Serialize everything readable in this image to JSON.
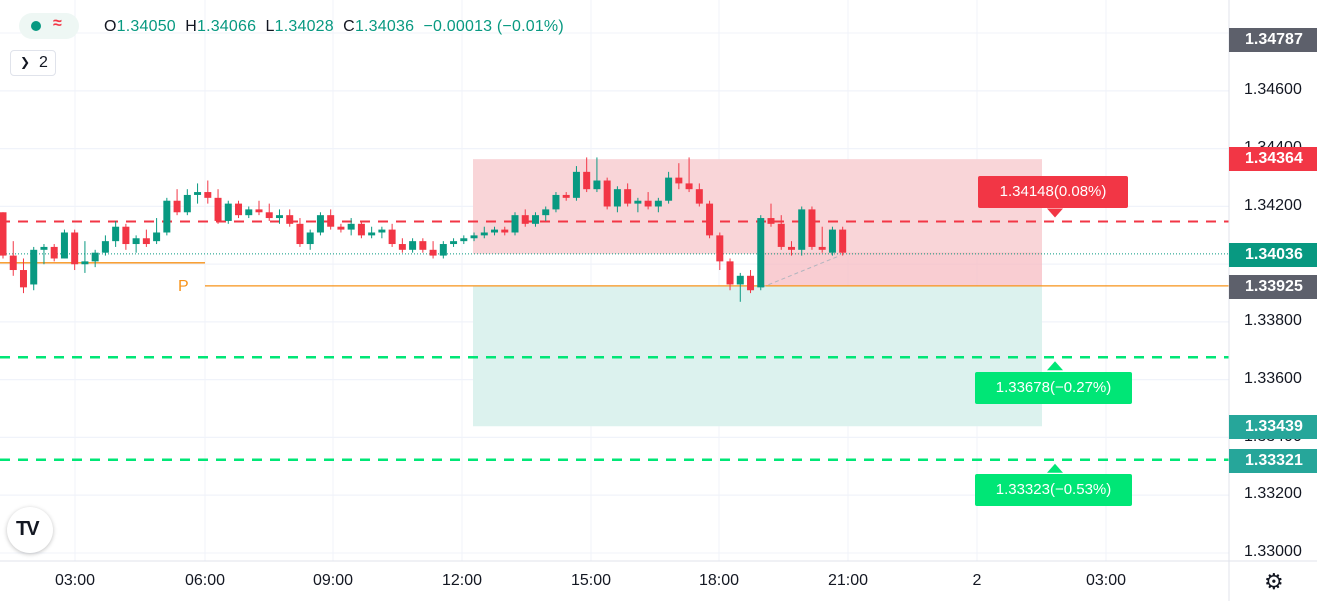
{
  "legend": {
    "dot_icon": "circle-icon",
    "wave_icon": "approx-icon",
    "collapse_icon": "chevron-down-icon",
    "collapse_count": "2"
  },
  "ohlc": {
    "o_key": "O",
    "o_val": "1.34050",
    "h_key": "H",
    "h_val": "1.34066",
    "l_key": "L",
    "l_val": "1.34028",
    "c_key": "C",
    "c_val": "1.34036",
    "change": "−0.00013 (−0.01%)"
  },
  "price_axis": {
    "labels": [
      "1.34600",
      "1.34400",
      "1.34200",
      "1.34000",
      "1.33800",
      "1.33600",
      "1.33400",
      "1.33200",
      "1.33000"
    ]
  },
  "price_tags": {
    "top": "1.34787",
    "stop": "1.34364",
    "last": "1.34036",
    "pivot": "1.33925",
    "target1": "1.33439",
    "target2": "1.33321"
  },
  "time_axis": {
    "labels": [
      "03:00",
      "06:00",
      "09:00",
      "12:00",
      "15:00",
      "18:00",
      "21:00",
      "2",
      "03:00"
    ]
  },
  "position": {
    "stop_label": "1.34148(0.08%)",
    "tp1_label": "1.33678(−0.27%)",
    "tp2_label": "1.33323(−0.53%)"
  },
  "pivot_label": "P",
  "colors": {
    "up": "#089981",
    "down": "#f23645",
    "stop_zone": "#f9d5d8",
    "target_zone": "#dcf2ee",
    "tp_line": "#00e676",
    "stop_line": "#f23645",
    "pivot_line": "#f7931a",
    "axis_dark": "#5d606b",
    "target_tag": "#26a69a"
  },
  "logo": "tradingview-logo",
  "settings_icon": "gear-icon",
  "chart_data": {
    "type": "candlestick",
    "ylim": [
      1.33,
      1.3479
    ],
    "x_ticks": [
      "03:00",
      "06:00",
      "09:00",
      "12:00",
      "15:00",
      "18:00",
      "21:00",
      "2",
      "03:00"
    ],
    "candles": [
      [
        1.3418,
        1.3418,
        1.3402,
        1.3403
      ],
      [
        1.3403,
        1.3408,
        1.3396,
        1.3398
      ],
      [
        1.3398,
        1.3402,
        1.339,
        1.3392
      ],
      [
        1.3393,
        1.3406,
        1.3391,
        1.3405
      ],
      [
        1.3405,
        1.3407,
        1.34,
        1.3406
      ],
      [
        1.3406,
        1.3407,
        1.3401,
        1.3402
      ],
      [
        1.3402,
        1.3412,
        1.3402,
        1.3411
      ],
      [
        1.3411,
        1.3412,
        1.3398,
        1.34
      ],
      [
        1.34,
        1.3408,
        1.3397,
        1.3401
      ],
      [
        1.3401,
        1.3405,
        1.3399,
        1.3404
      ],
      [
        1.3404,
        1.341,
        1.3403,
        1.3408
      ],
      [
        1.3408,
        1.3415,
        1.3406,
        1.3413
      ],
      [
        1.3413,
        1.3414,
        1.3405,
        1.3407
      ],
      [
        1.3407,
        1.341,
        1.3404,
        1.3409
      ],
      [
        1.3409,
        1.3412,
        1.3406,
        1.3407
      ],
      [
        1.3408,
        1.3416,
        1.3407,
        1.3411
      ],
      [
        1.3411,
        1.3423,
        1.341,
        1.3422
      ],
      [
        1.3422,
        1.3426,
        1.3417,
        1.3418
      ],
      [
        1.3418,
        1.3426,
        1.3417,
        1.3424
      ],
      [
        1.3424,
        1.3428,
        1.3421,
        1.3425
      ],
      [
        1.3425,
        1.3429,
        1.3421,
        1.3423
      ],
      [
        1.3423,
        1.3426,
        1.3414,
        1.3415
      ],
      [
        1.3415,
        1.3422,
        1.3414,
        1.3421
      ],
      [
        1.3421,
        1.3422,
        1.3416,
        1.3417
      ],
      [
        1.3417,
        1.342,
        1.3416,
        1.3419
      ],
      [
        1.3419,
        1.3422,
        1.3417,
        1.3418
      ],
      [
        1.3418,
        1.3421,
        1.3415,
        1.3416
      ],
      [
        1.3416,
        1.3419,
        1.3414,
        1.3417
      ],
      [
        1.3417,
        1.3419,
        1.3413,
        1.3414
      ],
      [
        1.3414,
        1.3416,
        1.3406,
        1.3407
      ],
      [
        1.3407,
        1.3412,
        1.3405,
        1.3411
      ],
      [
        1.3411,
        1.3418,
        1.341,
        1.3417
      ],
      [
        1.3417,
        1.3419,
        1.3412,
        1.3413
      ],
      [
        1.3413,
        1.3414,
        1.3411,
        1.3412
      ],
      [
        1.3412,
        1.3416,
        1.341,
        1.3414
      ],
      [
        1.3414,
        1.3415,
        1.3409,
        1.341
      ],
      [
        1.341,
        1.3413,
        1.3409,
        1.3411
      ],
      [
        1.3411,
        1.3413,
        1.3409,
        1.3412
      ],
      [
        1.3412,
        1.3414,
        1.3406,
        1.3407
      ],
      [
        1.3407,
        1.3409,
        1.3404,
        1.3405
      ],
      [
        1.3405,
        1.3409,
        1.3404,
        1.3408
      ],
      [
        1.3408,
        1.3409,
        1.3404,
        1.3405
      ],
      [
        1.3405,
        1.3408,
        1.3402,
        1.3403
      ],
      [
        1.3403,
        1.3408,
        1.3402,
        1.3407
      ],
      [
        1.3407,
        1.3409,
        1.3406,
        1.3408
      ],
      [
        1.3408,
        1.341,
        1.3407,
        1.3409
      ],
      [
        1.3409,
        1.3411,
        1.3408,
        1.341
      ],
      [
        1.341,
        1.3413,
        1.3409,
        1.3411
      ],
      [
        1.3411,
        1.3413,
        1.341,
        1.3412
      ],
      [
        1.3412,
        1.3413,
        1.341,
        1.3411
      ],
      [
        1.3411,
        1.3418,
        1.341,
        1.3417
      ],
      [
        1.3417,
        1.3419,
        1.3413,
        1.3414
      ],
      [
        1.3414,
        1.3418,
        1.3413,
        1.3417
      ],
      [
        1.3417,
        1.342,
        1.3415,
        1.3419
      ],
      [
        1.3419,
        1.3425,
        1.3418,
        1.3424
      ],
      [
        1.3424,
        1.3425,
        1.3422,
        1.3423
      ],
      [
        1.3423,
        1.3434,
        1.3422,
        1.3432
      ],
      [
        1.3432,
        1.3437,
        1.3425,
        1.3426
      ],
      [
        1.3426,
        1.3437,
        1.3425,
        1.3429
      ],
      [
        1.3429,
        1.343,
        1.3419,
        1.342
      ],
      [
        1.342,
        1.3427,
        1.3418,
        1.3426
      ],
      [
        1.3426,
        1.3428,
        1.342,
        1.3421
      ],
      [
        1.3421,
        1.3423,
        1.3418,
        1.3422
      ],
      [
        1.3422,
        1.3425,
        1.3419,
        1.342
      ],
      [
        1.342,
        1.3423,
        1.3418,
        1.3422
      ],
      [
        1.3422,
        1.3432,
        1.3421,
        1.343
      ],
      [
        1.343,
        1.3435,
        1.3426,
        1.3428
      ],
      [
        1.3428,
        1.3437,
        1.3425,
        1.3426
      ],
      [
        1.3426,
        1.3428,
        1.342,
        1.3421
      ],
      [
        1.3421,
        1.3422,
        1.3409,
        1.341
      ],
      [
        1.341,
        1.3411,
        1.3398,
        1.3401
      ],
      [
        1.3401,
        1.3402,
        1.3391,
        1.3393
      ],
      [
        1.3393,
        1.3397,
        1.3387,
        1.3396
      ],
      [
        1.3396,
        1.3398,
        1.339,
        1.3391
      ],
      [
        1.3392,
        1.3417,
        1.3391,
        1.3416
      ],
      [
        1.3416,
        1.3421,
        1.3413,
        1.3414
      ],
      [
        1.3414,
        1.3417,
        1.3405,
        1.3406
      ],
      [
        1.3406,
        1.3408,
        1.3403,
        1.3405
      ],
      [
        1.3405,
        1.342,
        1.3403,
        1.3419
      ],
      [
        1.3419,
        1.342,
        1.3405,
        1.3406
      ],
      [
        1.3406,
        1.3413,
        1.3404,
        1.3405
      ],
      [
        1.3404,
        1.3413,
        1.3403,
        1.3412
      ],
      [
        1.3412,
        1.3413,
        1.3403,
        1.3404
      ]
    ],
    "horizontal_lines": {
      "stop_dashed": 1.34148,
      "tp1_dashed": 1.33678,
      "tp2_dashed": 1.33323,
      "pivot": 1.33925,
      "last": 1.34036
    },
    "position_box": {
      "entry": 1.34036,
      "stop_top": 1.34364,
      "target_bottom": 1.33439
    }
  }
}
